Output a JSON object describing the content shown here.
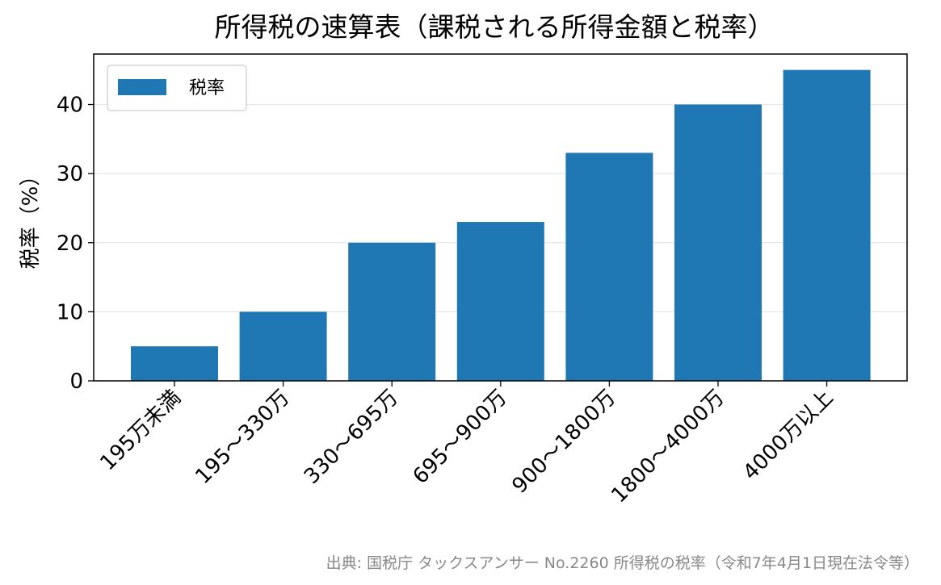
{
  "chart_data": {
    "type": "bar",
    "title": "所得税の速算表（課税される所得金額と税率）",
    "xlabel": "",
    "ylabel": "税率（%）",
    "categories": [
      "195万未満",
      "195〜330万",
      "330〜695万",
      "695〜900万",
      "900〜1800万",
      "1800〜4000万",
      "4000万以上"
    ],
    "series": [
      {
        "name": "税率",
        "values": [
          5,
          10,
          20,
          23,
          33,
          40,
          45
        ]
      }
    ],
    "ylim": [
      0,
      47.3
    ],
    "yticks": [
      0,
      10,
      20,
      30,
      40
    ],
    "grid": "y",
    "legend_position": "top-left",
    "bar_color": "#1f77b4",
    "source": "出典: 国税庁 タックスアンサー No.2260 所得税の税率（令和7年4月1日現在法令等）"
  }
}
